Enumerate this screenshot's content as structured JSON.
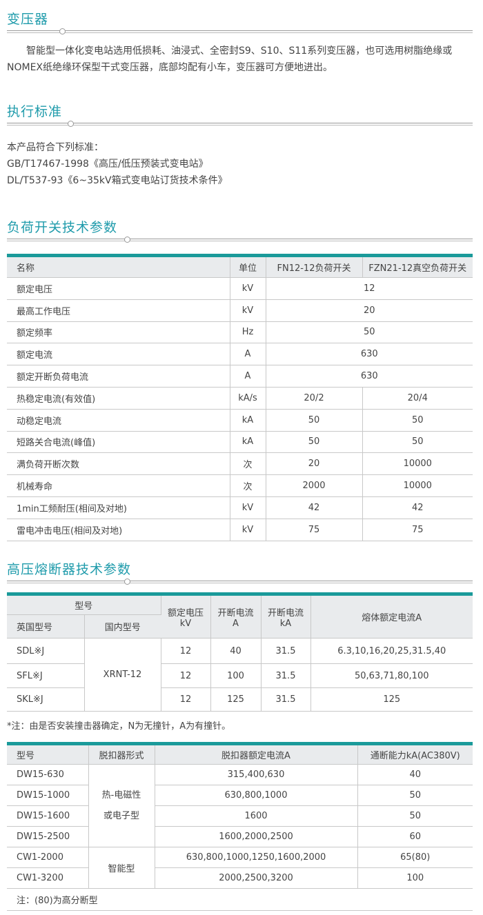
{
  "transformer": {
    "title": "变压器",
    "body": "智能型一体化变电站选用低损耗、油浸式、全密封S9、S10、S11系列变压器，也可选用树脂绝缘或NOMEX纸绝缘环保型干式变压器，底部均配有小车，变压器可方便地进出。"
  },
  "standards": {
    "title": "执行标准",
    "lines": [
      "本产品符合下列标准：",
      "GB/T17467-1998《高压/低压预装式变电站》",
      "DL/T537-93《6~35kV箱式变电站订货技术条件》"
    ]
  },
  "load_switch": {
    "title": "负荷开关技术参数",
    "headers": [
      "名称",
      "单位",
      "FN12-12负荷开关",
      "FZN21-12真空负荷开关"
    ],
    "rows": [
      [
        "额定电压",
        "kV",
        "12"
      ],
      [
        "最高工作电压",
        "kV",
        "20"
      ],
      [
        "额定频率",
        "Hz",
        "50"
      ],
      [
        "额定电流",
        "A",
        "630"
      ],
      [
        "额定开断负荷电流",
        "A",
        "630"
      ],
      [
        "热稳定电流(有效值)",
        "kA/s",
        "20/2",
        "20/4"
      ],
      [
        "动稳定电流",
        "kA",
        "50",
        "50"
      ],
      [
        "短路关合电流(峰值)",
        "kA",
        "50",
        "50"
      ],
      [
        "满负荷开断次数",
        "次",
        "20",
        "10000"
      ],
      [
        "机械寿命",
        "次",
        "2000",
        "10000"
      ],
      [
        "1min工频耐压(相间及对地)",
        "kV",
        "42",
        "42"
      ],
      [
        "雷电冲击电压(相间及对地)",
        "kV",
        "75",
        "75"
      ]
    ]
  },
  "fuse": {
    "title": "高压熔断器技术参数",
    "headers": {
      "model": "型号",
      "uk": "英国型号",
      "cn": "国内型号",
      "voltage": "额定电压kV",
      "break_a": "开断电流A",
      "break_ka": "开断电流kA",
      "melt": "熔体额定电流A"
    },
    "cn_model": "XRNT-12",
    "rows": [
      [
        "SDL※J",
        "12",
        "40",
        "31.5",
        "6.3,10,16,20,25,31.5,40"
      ],
      [
        "SFL※J",
        "12",
        "100",
        "31.5",
        "50,63,71,80,100"
      ],
      [
        "SKL※J",
        "12",
        "125",
        "31.5",
        "125"
      ]
    ],
    "note": "*注：由是否安装撞击器确定，N为无撞针，A为有撞针。"
  },
  "breaker": {
    "headers": [
      "型号",
      "脱扣器形式",
      "脱扣器额定电流A",
      "通断能力kA(AC380V)"
    ],
    "group1": "热-电磁性\n或电子型",
    "group2": "智能型",
    "rows": [
      [
        "DW15-630",
        "315,400,630",
        "40"
      ],
      [
        "DW15-1000",
        "630,800,1000",
        "50"
      ],
      [
        "DW15-1600",
        "1600",
        "50"
      ],
      [
        "DW15-2500",
        "1600,2000,2500",
        "60"
      ],
      [
        "CW1-2000",
        "630,800,1000,1250,1600,2000",
        "65(80)"
      ],
      [
        "CW1-3200",
        "2000,2500,3200",
        "100"
      ]
    ],
    "note": "注：(80)为高分断型"
  },
  "colors": {
    "accent": "#1a9a9a",
    "heading": "#1f9bab",
    "header_bg": "#e9ebed"
  }
}
